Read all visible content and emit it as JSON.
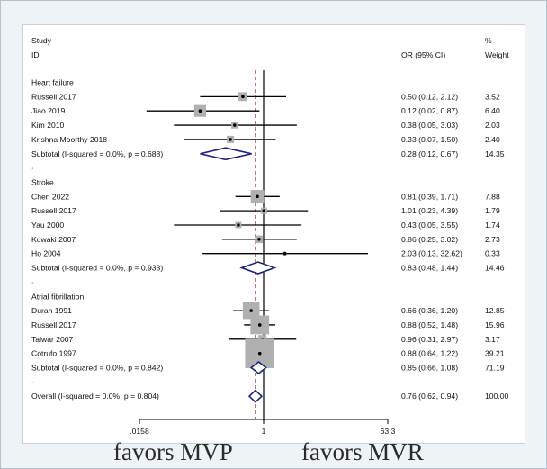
{
  "chart_data": {
    "type": "forest",
    "scale": "log",
    "null_line": 1,
    "overall_line": 0.76,
    "xlim": [
      0.0158,
      63.3
    ],
    "xticks": [
      {
        "value": 0.0158,
        "label": ".0158"
      },
      {
        "value": 1,
        "label": "1"
      },
      {
        "value": 63.3,
        "label": "63.3"
      }
    ],
    "header": {
      "study": "Study",
      "id": "ID",
      "or": "OR (95% CI)",
      "pct": "%",
      "weight": "Weight"
    },
    "favors_left": "favors MVP",
    "favors_right": "favors MVR",
    "groups": [
      {
        "name": "Heart failure",
        "studies": [
          {
            "id": "Russell 2017",
            "or": 0.5,
            "lo": 0.12,
            "hi": 2.12,
            "or_text": "0.50 (0.12, 2.12)",
            "weight": 3.52,
            "weight_text": "3.52"
          },
          {
            "id": "Jiao 2019",
            "or": 0.12,
            "lo": 0.02,
            "hi": 0.87,
            "or_text": "0.12 (0.02, 0.87)",
            "weight": 6.4,
            "weight_text": "6.40"
          },
          {
            "id": "Kim 2010",
            "or": 0.38,
            "lo": 0.05,
            "hi": 3.03,
            "or_text": "0.38 (0.05, 3.03)",
            "weight": 2.03,
            "weight_text": "2.03"
          },
          {
            "id": "Krishna Moorthy 2018",
            "or": 0.33,
            "lo": 0.07,
            "hi": 1.5,
            "or_text": "0.33 (0.07, 1.50)",
            "weight": 2.4,
            "weight_text": "2.40"
          }
        ],
        "subtotal": {
          "label": "Subtotal  (I-squared = 0.0%, p = 0.688)",
          "or": 0.28,
          "lo": 0.12,
          "hi": 0.67,
          "or_text": "0.28 (0.12, 0.67)",
          "weight_text": "14.35"
        }
      },
      {
        "name": "Stroke",
        "studies": [
          {
            "id": "Chen 2022",
            "or": 0.81,
            "lo": 0.39,
            "hi": 1.71,
            "or_text": "0.81 (0.39, 1.71)",
            "weight": 7.88,
            "weight_text": "7.88"
          },
          {
            "id": "Russell 2017",
            "or": 1.01,
            "lo": 0.23,
            "hi": 4.39,
            "or_text": "1.01 (0.23, 4.39)",
            "weight": 1.79,
            "weight_text": "1.79"
          },
          {
            "id": "Yau 2000",
            "or": 0.43,
            "lo": 0.05,
            "hi": 3.55,
            "or_text": "0.43 (0.05, 3.55)",
            "weight": 1.74,
            "weight_text": "1.74"
          },
          {
            "id": "Kuwaki 2007",
            "or": 0.86,
            "lo": 0.25,
            "hi": 3.02,
            "or_text": "0.86 (0.25, 3.02)",
            "weight": 2.73,
            "weight_text": "2.73"
          },
          {
            "id": "Ho  2004",
            "or": 2.03,
            "lo": 0.13,
            "hi": 32.62,
            "or_text": "2.03 (0.13, 32.62)",
            "weight": 0.33,
            "weight_text": "0.33"
          }
        ],
        "subtotal": {
          "label": "Subtotal  (I-squared = 0.0%, p = 0.933)",
          "or": 0.83,
          "lo": 0.48,
          "hi": 1.44,
          "or_text": "0.83 (0.48, 1.44)",
          "weight_text": "14.46"
        }
      },
      {
        "name": "Atrial fibrillation",
        "studies": [
          {
            "id": "Duran 1991",
            "or": 0.66,
            "lo": 0.36,
            "hi": 1.2,
            "or_text": "0.66 (0.36, 1.20)",
            "weight": 12.85,
            "weight_text": "12.85"
          },
          {
            "id": "Russell 2017",
            "or": 0.88,
            "lo": 0.52,
            "hi": 1.48,
            "or_text": "0.88 (0.52, 1.48)",
            "weight": 15.96,
            "weight_text": "15.96"
          },
          {
            "id": "Talwar 2007",
            "or": 0.96,
            "lo": 0.31,
            "hi": 2.97,
            "or_text": "0.96 (0.31, 2.97)",
            "weight": 3.17,
            "weight_text": "3.17"
          },
          {
            "id": "Cotrufo 1997",
            "or": 0.88,
            "lo": 0.64,
            "hi": 1.22,
            "or_text": "0.88 (0.64, 1.22)",
            "weight": 39.21,
            "weight_text": "39.21"
          }
        ],
        "subtotal": {
          "label": "Subtotal  (I-squared = 0.0%, p = 0.842)",
          "or": 0.85,
          "lo": 0.66,
          "hi": 1.08,
          "or_text": "0.85 (0.66, 1.08)",
          "weight_text": "71.19"
        }
      }
    ],
    "overall": {
      "label": "Overall  (I-squared = 0.0%, p = 0.804)",
      "or": 0.76,
      "lo": 0.62,
      "hi": 0.94,
      "or_text": "0.76 (0.62, 0.94)",
      "weight_text": "100.00"
    },
    "colors": {
      "diamond": "#1a237e",
      "box": "#b0b0b0",
      "line": "#000000",
      "dashed": "#8b2a3a"
    }
  }
}
